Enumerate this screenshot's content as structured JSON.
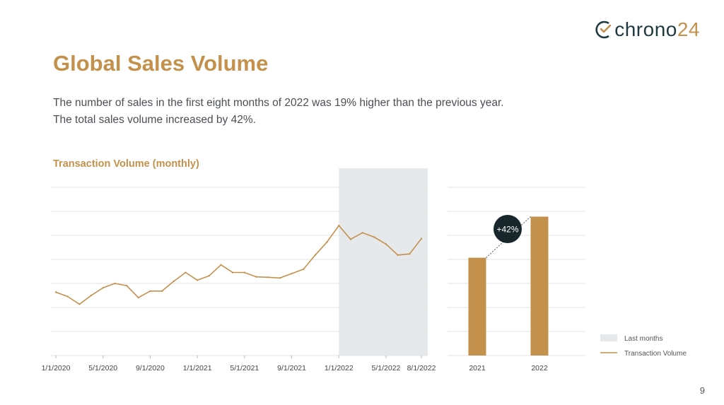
{
  "brand": {
    "name_part1": "chrono",
    "name_part2": "24"
  },
  "title": "Global Sales Volume",
  "subtitle_lines": [
    "The number of sales in the first eight months of 2022 was 19% higher than the previous year.",
    "The total sales volume increased by 42%."
  ],
  "page_number": "9",
  "colors": {
    "accent": "#c4914d",
    "brand_dark": "#1e3a3f",
    "shade": "#e6e9ec",
    "grid": "#e3e3e3",
    "text": "#4a4f55"
  },
  "chart_data": [
    {
      "type": "line",
      "title": "Transaction Volume (monthly)",
      "x_tick_labels": [
        "1/1/2020",
        "5/1/2020",
        "9/1/2020",
        "1/1/2021",
        "5/1/2021",
        "9/1/2021",
        "1/1/2022",
        "5/1/2022",
        "8/1/2022"
      ],
      "x": [
        "1/1/2020",
        "2/1/2020",
        "3/1/2020",
        "4/1/2020",
        "5/1/2020",
        "6/1/2020",
        "7/1/2020",
        "8/1/2020",
        "9/1/2020",
        "10/1/2020",
        "11/1/2020",
        "12/1/2020",
        "1/1/2021",
        "2/1/2021",
        "3/1/2021",
        "4/1/2021",
        "5/1/2021",
        "6/1/2021",
        "7/1/2021",
        "8/1/2021",
        "9/1/2021",
        "10/1/2021",
        "11/1/2021",
        "12/1/2021",
        "1/1/2022",
        "2/1/2022",
        "3/1/2022",
        "4/1/2022",
        "5/1/2022",
        "6/1/2022",
        "7/1/2022",
        "8/1/2022"
      ],
      "series": [
        {
          "name": "Transaction Volume",
          "values": [
            2.9,
            2.7,
            2.35,
            2.75,
            3.1,
            3.3,
            3.2,
            2.65,
            2.95,
            2.95,
            3.4,
            3.8,
            3.45,
            3.65,
            4.15,
            3.8,
            3.8,
            3.6,
            3.58,
            3.55,
            3.75,
            3.95,
            4.6,
            5.2,
            5.95,
            5.32,
            5.62,
            5.42,
            5.1,
            4.6,
            4.65,
            5.35
          ]
        }
      ],
      "highlight": {
        "label": "Last months",
        "from": "1/1/2022",
        "to": "8/1/2022"
      },
      "ylim": [
        0,
        7.7
      ],
      "grid": true
    },
    {
      "type": "bar",
      "categories": [
        "2021",
        "2022"
      ],
      "values": [
        100,
        142
      ],
      "annotation": "+42%",
      "ylim": [
        0,
        172
      ],
      "grid": true
    }
  ],
  "legend": [
    {
      "label": "Last months",
      "kind": "shade"
    },
    {
      "label": "Transaction Volume",
      "kind": "line"
    }
  ]
}
